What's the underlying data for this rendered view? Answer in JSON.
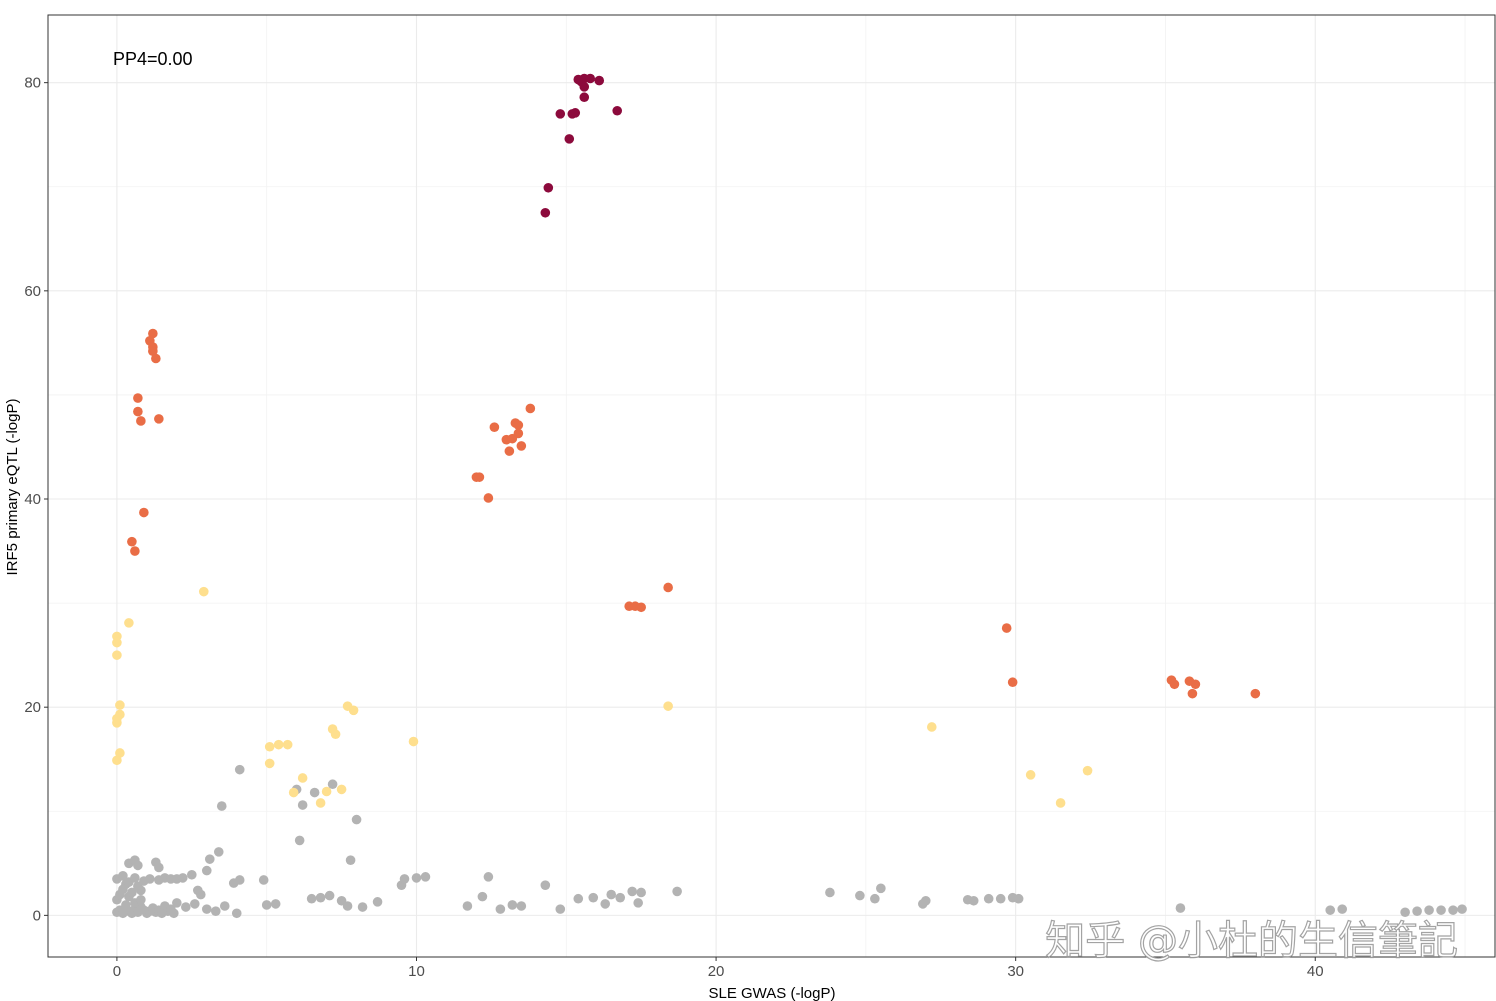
{
  "annotation": "PP4=0.00",
  "watermark": "知乎 @小杜的生信筆記",
  "chart_data": {
    "type": "scatter",
    "xlabel": "SLE GWAS (-logP)",
    "ylabel": "IRF5 primary eQTL (-logP)",
    "xlim": [
      -2.3,
      46
    ],
    "ylim": [
      -4,
      86.5
    ],
    "xticks": [
      0,
      10,
      20,
      30,
      40
    ],
    "yticks": [
      0,
      20,
      40,
      60,
      80
    ],
    "grid": true,
    "colors": {
      "gray": "#b3b3b3",
      "yellow": "#fedf8e",
      "orange": "#e96d46",
      "maroon": "#8c0a3c"
    },
    "series": [
      {
        "color_key": "maroon",
        "points": [
          [
            15.4,
            80.3
          ],
          [
            15.6,
            80.4
          ],
          [
            15.8,
            80.4
          ],
          [
            16.1,
            80.2
          ],
          [
            15.5,
            80.1
          ],
          [
            15.6,
            79.6
          ],
          [
            15.6,
            78.6
          ],
          [
            16.7,
            77.3
          ],
          [
            14.8,
            77.0
          ],
          [
            15.2,
            77.0
          ],
          [
            15.3,
            77.1
          ],
          [
            15.1,
            74.6
          ],
          [
            14.4,
            69.9
          ],
          [
            14.3,
            67.5
          ]
        ]
      },
      {
        "color_key": "orange",
        "points": [
          [
            1.2,
            55.9
          ],
          [
            1.1,
            55.2
          ],
          [
            1.2,
            54.6
          ],
          [
            1.2,
            54.2
          ],
          [
            1.3,
            53.5
          ],
          [
            0.7,
            49.7
          ],
          [
            0.7,
            48.4
          ],
          [
            0.8,
            47.5
          ],
          [
            1.4,
            47.7
          ],
          [
            0.9,
            38.7
          ],
          [
            0.5,
            35.9
          ],
          [
            0.6,
            35.0
          ],
          [
            13.8,
            48.7
          ],
          [
            12.6,
            46.9
          ],
          [
            13.3,
            47.3
          ],
          [
            13.4,
            47.1
          ],
          [
            13.0,
            45.7
          ],
          [
            13.2,
            45.8
          ],
          [
            13.4,
            46.3
          ],
          [
            13.5,
            45.1
          ],
          [
            13.1,
            44.6
          ],
          [
            12.0,
            42.1
          ],
          [
            12.1,
            42.1
          ],
          [
            12.4,
            40.1
          ],
          [
            17.1,
            29.7
          ],
          [
            17.3,
            29.7
          ],
          [
            17.5,
            29.6
          ],
          [
            18.4,
            31.5
          ],
          [
            29.7,
            27.6
          ],
          [
            29.9,
            22.4
          ],
          [
            35.2,
            22.6
          ],
          [
            35.3,
            22.2
          ],
          [
            35.8,
            22.5
          ],
          [
            36.0,
            22.2
          ],
          [
            35.9,
            21.3
          ],
          [
            38.0,
            21.3
          ]
        ]
      },
      {
        "color_key": "yellow",
        "points": [
          [
            0.0,
            26.8
          ],
          [
            0.0,
            26.2
          ],
          [
            0.0,
            25.0
          ],
          [
            0.4,
            28.1
          ],
          [
            0.1,
            20.2
          ],
          [
            0.1,
            19.3
          ],
          [
            0.0,
            18.9
          ],
          [
            0.0,
            18.5
          ],
          [
            0.1,
            15.6
          ],
          [
            0.0,
            14.9
          ],
          [
            2.9,
            31.1
          ],
          [
            5.1,
            16.2
          ],
          [
            5.4,
            16.4
          ],
          [
            5.7,
            16.4
          ],
          [
            5.1,
            14.6
          ],
          [
            5.9,
            11.8
          ],
          [
            6.2,
            13.2
          ],
          [
            7.2,
            17.9
          ],
          [
            7.3,
            17.4
          ],
          [
            7.7,
            20.1
          ],
          [
            7.9,
            19.7
          ],
          [
            7.5,
            12.1
          ],
          [
            7.0,
            11.9
          ],
          [
            6.8,
            10.8
          ],
          [
            9.9,
            16.7
          ],
          [
            18.4,
            20.1
          ],
          [
            27.2,
            18.1
          ],
          [
            30.5,
            13.5
          ],
          [
            31.5,
            10.8
          ],
          [
            32.4,
            13.9
          ]
        ]
      },
      {
        "color_key": "gray",
        "points": [
          [
            0.0,
            0.3
          ],
          [
            0.1,
            0.5
          ],
          [
            0.2,
            0.2
          ],
          [
            0.3,
            1.0
          ],
          [
            0.4,
            0.4
          ],
          [
            0.5,
            0.2
          ],
          [
            0.6,
            0.6
          ],
          [
            0.7,
            0.3
          ],
          [
            0.8,
            0.8
          ],
          [
            0.9,
            0.5
          ],
          [
            1.0,
            0.2
          ],
          [
            1.1,
            0.4
          ],
          [
            1.2,
            0.7
          ],
          [
            1.3,
            0.3
          ],
          [
            1.4,
            0.5
          ],
          [
            1.5,
            0.2
          ],
          [
            1.6,
            0.9
          ],
          [
            1.7,
            0.4
          ],
          [
            1.8,
            0.6
          ],
          [
            1.9,
            0.2
          ],
          [
            0.0,
            1.5
          ],
          [
            0.1,
            2.0
          ],
          [
            0.2,
            2.5
          ],
          [
            0.3,
            3.0
          ],
          [
            0.4,
            1.8
          ],
          [
            0.5,
            2.2
          ],
          [
            0.6,
            1.2
          ],
          [
            0.7,
            2.8
          ],
          [
            0.8,
            1.5
          ],
          [
            0.9,
            3.3
          ],
          [
            0.0,
            3.5
          ],
          [
            0.2,
            3.8
          ],
          [
            0.4,
            3.2
          ],
          [
            0.6,
            3.6
          ],
          [
            0.8,
            2.4
          ],
          [
            0.4,
            5.0
          ],
          [
            0.6,
            5.3
          ],
          [
            0.7,
            4.8
          ],
          [
            1.3,
            5.1
          ],
          [
            1.4,
            4.6
          ],
          [
            1.1,
            3.5
          ],
          [
            1.4,
            3.4
          ],
          [
            1.6,
            3.6
          ],
          [
            1.8,
            3.5
          ],
          [
            2.0,
            3.5
          ],
          [
            2.2,
            3.6
          ],
          [
            2.5,
            3.9
          ],
          [
            2.0,
            1.2
          ],
          [
            2.3,
            0.8
          ],
          [
            2.6,
            1.1
          ],
          [
            3.0,
            0.6
          ],
          [
            3.3,
            0.4
          ],
          [
            3.6,
            0.9
          ],
          [
            4.0,
            0.2
          ],
          [
            2.7,
            2.4
          ],
          [
            2.8,
            2.0
          ],
          [
            3.0,
            4.3
          ],
          [
            3.1,
            5.4
          ],
          [
            3.4,
            6.1
          ],
          [
            3.5,
            10.5
          ],
          [
            4.1,
            14.0
          ],
          [
            4.1,
            3.4
          ],
          [
            3.9,
            3.1
          ],
          [
            4.9,
            3.4
          ],
          [
            5.0,
            1.0
          ],
          [
            5.3,
            1.1
          ],
          [
            6.0,
            12.1
          ],
          [
            6.1,
            7.2
          ],
          [
            6.2,
            10.6
          ],
          [
            6.6,
            11.8
          ],
          [
            7.2,
            12.6
          ],
          [
            7.8,
            5.3
          ],
          [
            8.0,
            9.2
          ],
          [
            6.5,
            1.6
          ],
          [
            6.8,
            1.7
          ],
          [
            7.1,
            1.9
          ],
          [
            7.5,
            1.4
          ],
          [
            7.7,
            0.9
          ],
          [
            8.2,
            0.8
          ],
          [
            8.7,
            1.3
          ],
          [
            9.5,
            2.9
          ],
          [
            9.6,
            3.5
          ],
          [
            10.0,
            3.6
          ],
          [
            10.3,
            3.7
          ],
          [
            11.7,
            0.9
          ],
          [
            12.2,
            1.8
          ],
          [
            12.4,
            3.7
          ],
          [
            12.8,
            0.6
          ],
          [
            13.2,
            1.0
          ],
          [
            13.5,
            0.9
          ],
          [
            14.3,
            2.9
          ],
          [
            14.8,
            0.6
          ],
          [
            15.4,
            1.6
          ],
          [
            15.9,
            1.7
          ],
          [
            16.3,
            1.1
          ],
          [
            16.5,
            2.0
          ],
          [
            16.8,
            1.7
          ],
          [
            17.2,
            2.3
          ],
          [
            17.5,
            2.2
          ],
          [
            17.4,
            1.2
          ],
          [
            18.7,
            2.3
          ],
          [
            23.8,
            2.2
          ],
          [
            24.8,
            1.9
          ],
          [
            25.3,
            1.6
          ],
          [
            25.5,
            2.6
          ],
          [
            26.9,
            1.1
          ],
          [
            27.0,
            1.4
          ],
          [
            28.4,
            1.5
          ],
          [
            28.6,
            1.4
          ],
          [
            29.1,
            1.6
          ],
          [
            29.5,
            1.6
          ],
          [
            29.9,
            1.7
          ],
          [
            30.1,
            1.6
          ],
          [
            35.5,
            0.7
          ],
          [
            40.5,
            0.5
          ],
          [
            40.9,
            0.6
          ],
          [
            43.0,
            0.3
          ],
          [
            43.4,
            0.4
          ],
          [
            43.8,
            0.5
          ],
          [
            44.2,
            0.5
          ],
          [
            44.6,
            0.5
          ],
          [
            44.9,
            0.6
          ]
        ]
      }
    ]
  }
}
